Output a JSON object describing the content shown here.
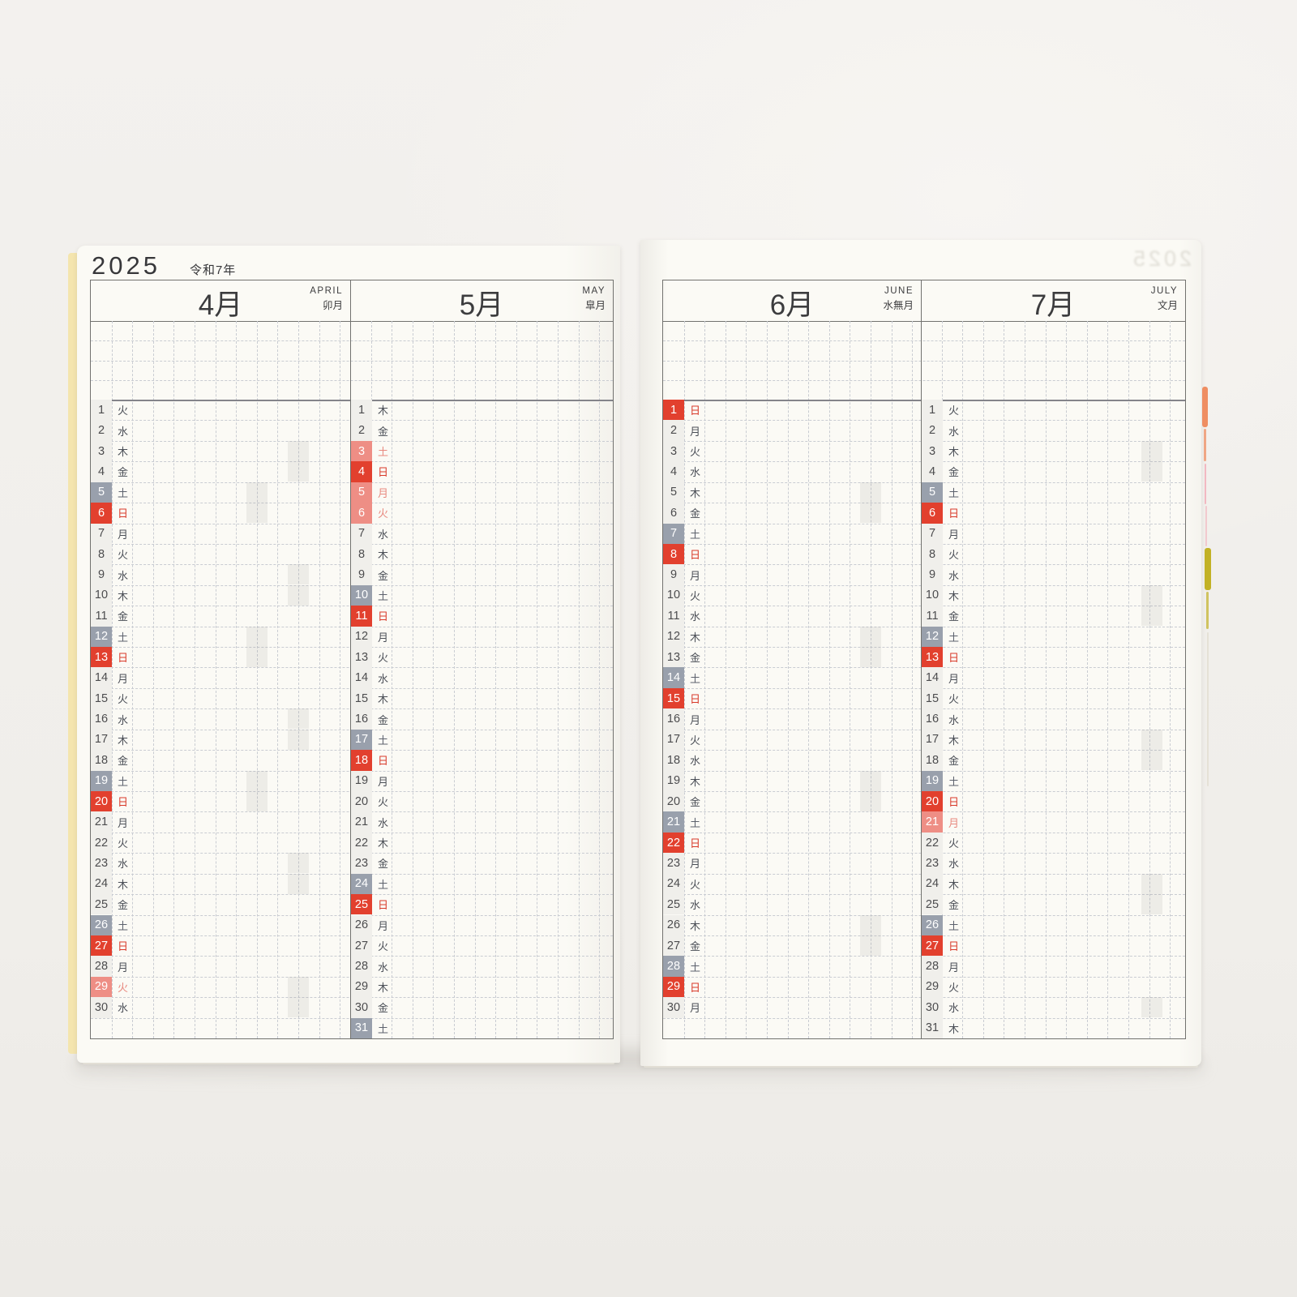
{
  "year": {
    "western": "2025",
    "era": "令和7年"
  },
  "ghost_showthrough_text": "2025",
  "palette": {
    "paper": "#fbfaf5",
    "background": "#f1efec",
    "daynum_bg": "#f0efeb",
    "saturday_bg": "#99a0ac",
    "sunday_bg": "#e2402e",
    "holiday_bg": "#ee8e85",
    "saturday_text": "#5d626d",
    "sunday_text": "#d83a2a",
    "holiday_text": "#e8897f",
    "grid": "#c9ccd2"
  },
  "edge_tabs": [
    {
      "name": "orange-tab",
      "color": "#ef8e62"
    },
    {
      "name": "pink-tab",
      "color": "#f3aab6"
    },
    {
      "name": "olive-tab",
      "color": "#c2b125"
    }
  ],
  "months": [
    {
      "kanji": "4月",
      "en": "APRIL",
      "wafu": "卯月",
      "page": "left",
      "days": [
        [
          "1",
          "火",
          "n"
        ],
        [
          "2",
          "水",
          "n"
        ],
        [
          "3",
          "木",
          "n"
        ],
        [
          "4",
          "金",
          "n"
        ],
        [
          "5",
          "土",
          "sa"
        ],
        [
          "6",
          "日",
          "su"
        ],
        [
          "7",
          "月",
          "n"
        ],
        [
          "8",
          "火",
          "n"
        ],
        [
          "9",
          "水",
          "n"
        ],
        [
          "10",
          "木",
          "n"
        ],
        [
          "11",
          "金",
          "n"
        ],
        [
          "12",
          "土",
          "sa"
        ],
        [
          "13",
          "日",
          "su"
        ],
        [
          "14",
          "月",
          "n"
        ],
        [
          "15",
          "火",
          "n"
        ],
        [
          "16",
          "水",
          "n"
        ],
        [
          "17",
          "木",
          "n"
        ],
        [
          "18",
          "金",
          "n"
        ],
        [
          "19",
          "土",
          "sa"
        ],
        [
          "20",
          "日",
          "su"
        ],
        [
          "21",
          "月",
          "n"
        ],
        [
          "22",
          "火",
          "n"
        ],
        [
          "23",
          "水",
          "n"
        ],
        [
          "24",
          "木",
          "n"
        ],
        [
          "25",
          "金",
          "n"
        ],
        [
          "26",
          "土",
          "sa"
        ],
        [
          "27",
          "日",
          "su"
        ],
        [
          "28",
          "月",
          "n"
        ],
        [
          "29",
          "火",
          "ho"
        ],
        [
          "30",
          "水",
          "n"
        ]
      ]
    },
    {
      "kanji": "5月",
      "en": "MAY",
      "wafu": "皐月",
      "page": "left",
      "days": [
        [
          "1",
          "木",
          "n"
        ],
        [
          "2",
          "金",
          "n"
        ],
        [
          "3",
          "土",
          "ho"
        ],
        [
          "4",
          "日",
          "su"
        ],
        [
          "5",
          "月",
          "ho"
        ],
        [
          "6",
          "火",
          "ho"
        ],
        [
          "7",
          "水",
          "n"
        ],
        [
          "8",
          "木",
          "n"
        ],
        [
          "9",
          "金",
          "n"
        ],
        [
          "10",
          "土",
          "sa"
        ],
        [
          "11",
          "日",
          "su"
        ],
        [
          "12",
          "月",
          "n"
        ],
        [
          "13",
          "火",
          "n"
        ],
        [
          "14",
          "水",
          "n"
        ],
        [
          "15",
          "木",
          "n"
        ],
        [
          "16",
          "金",
          "n"
        ],
        [
          "17",
          "土",
          "sa"
        ],
        [
          "18",
          "日",
          "su"
        ],
        [
          "19",
          "月",
          "n"
        ],
        [
          "20",
          "火",
          "n"
        ],
        [
          "21",
          "水",
          "n"
        ],
        [
          "22",
          "木",
          "n"
        ],
        [
          "23",
          "金",
          "n"
        ],
        [
          "24",
          "土",
          "sa"
        ],
        [
          "25",
          "日",
          "su"
        ],
        [
          "26",
          "月",
          "n"
        ],
        [
          "27",
          "火",
          "n"
        ],
        [
          "28",
          "水",
          "n"
        ],
        [
          "29",
          "木",
          "n"
        ],
        [
          "30",
          "金",
          "n"
        ],
        [
          "31",
          "土",
          "sa"
        ]
      ]
    },
    {
      "kanji": "6月",
      "en": "JUNE",
      "wafu": "水無月",
      "page": "right",
      "days": [
        [
          "1",
          "日",
          "su"
        ],
        [
          "2",
          "月",
          "n"
        ],
        [
          "3",
          "火",
          "n"
        ],
        [
          "4",
          "水",
          "n"
        ],
        [
          "5",
          "木",
          "n"
        ],
        [
          "6",
          "金",
          "n"
        ],
        [
          "7",
          "土",
          "sa"
        ],
        [
          "8",
          "日",
          "su"
        ],
        [
          "9",
          "月",
          "n"
        ],
        [
          "10",
          "火",
          "n"
        ],
        [
          "11",
          "水",
          "n"
        ],
        [
          "12",
          "木",
          "n"
        ],
        [
          "13",
          "金",
          "n"
        ],
        [
          "14",
          "土",
          "sa"
        ],
        [
          "15",
          "日",
          "su"
        ],
        [
          "16",
          "月",
          "n"
        ],
        [
          "17",
          "火",
          "n"
        ],
        [
          "18",
          "水",
          "n"
        ],
        [
          "19",
          "木",
          "n"
        ],
        [
          "20",
          "金",
          "n"
        ],
        [
          "21",
          "土",
          "sa"
        ],
        [
          "22",
          "日",
          "su"
        ],
        [
          "23",
          "月",
          "n"
        ],
        [
          "24",
          "火",
          "n"
        ],
        [
          "25",
          "水",
          "n"
        ],
        [
          "26",
          "木",
          "n"
        ],
        [
          "27",
          "金",
          "n"
        ],
        [
          "28",
          "土",
          "sa"
        ],
        [
          "29",
          "日",
          "su"
        ],
        [
          "30",
          "月",
          "n"
        ]
      ]
    },
    {
      "kanji": "7月",
      "en": "JULY",
      "wafu": "文月",
      "page": "right",
      "days": [
        [
          "1",
          "火",
          "n"
        ],
        [
          "2",
          "水",
          "n"
        ],
        [
          "3",
          "木",
          "n"
        ],
        [
          "4",
          "金",
          "n"
        ],
        [
          "5",
          "土",
          "sa"
        ],
        [
          "6",
          "日",
          "su"
        ],
        [
          "7",
          "月",
          "n"
        ],
        [
          "8",
          "火",
          "n"
        ],
        [
          "9",
          "水",
          "n"
        ],
        [
          "10",
          "木",
          "n"
        ],
        [
          "11",
          "金",
          "n"
        ],
        [
          "12",
          "土",
          "sa"
        ],
        [
          "13",
          "日",
          "su"
        ],
        [
          "14",
          "月",
          "n"
        ],
        [
          "15",
          "火",
          "n"
        ],
        [
          "16",
          "水",
          "n"
        ],
        [
          "17",
          "木",
          "n"
        ],
        [
          "18",
          "金",
          "n"
        ],
        [
          "19",
          "土",
          "sa"
        ],
        [
          "20",
          "日",
          "su"
        ],
        [
          "21",
          "月",
          "ho"
        ],
        [
          "22",
          "火",
          "n"
        ],
        [
          "23",
          "水",
          "n"
        ],
        [
          "24",
          "木",
          "n"
        ],
        [
          "25",
          "金",
          "n"
        ],
        [
          "26",
          "土",
          "sa"
        ],
        [
          "27",
          "日",
          "su"
        ],
        [
          "28",
          "月",
          "n"
        ],
        [
          "29",
          "火",
          "n"
        ],
        [
          "30",
          "水",
          "n"
        ],
        [
          "31",
          "木",
          "n"
        ]
      ]
    }
  ]
}
